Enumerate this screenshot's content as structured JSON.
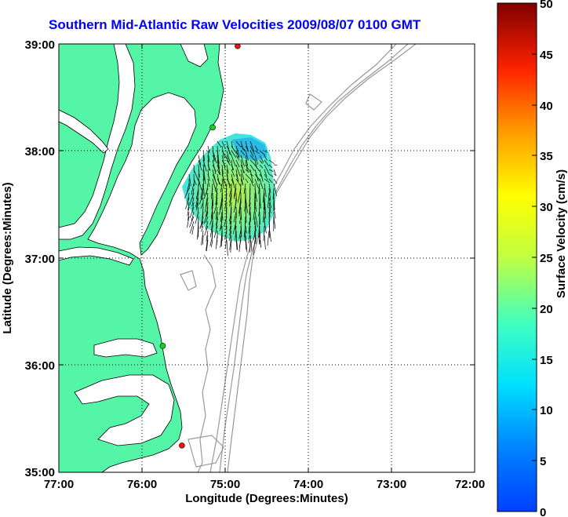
{
  "title": "Southern Mid-Atlantic Raw Velocities 2009/08/07 0100 GMT",
  "x_axis": {
    "label": "Longitude (Degrees:Minutes)",
    "ticks": [
      "77:00",
      "76:00",
      "75:00",
      "74:00",
      "73:00",
      "72:00"
    ],
    "values": [
      -77,
      -76,
      -75,
      -74,
      -73,
      -72
    ],
    "range": [
      -77,
      -72
    ]
  },
  "y_axis": {
    "label": "Latitude (Degrees:Minutes)",
    "ticks": [
      "39:00",
      "38:00",
      "37:00",
      "36:00",
      "35:00"
    ],
    "values": [
      39,
      38,
      37,
      36,
      35
    ],
    "range": [
      35,
      39
    ]
  },
  "colorbar": {
    "label": "Surface Velocity (cm/s)",
    "ticks": [
      "50",
      "45",
      "40",
      "35",
      "30",
      "25",
      "20",
      "15",
      "10",
      "5",
      "0"
    ],
    "range": [
      0,
      50
    ],
    "colormap": "jet"
  },
  "colors": {
    "land": "#55f5a8",
    "water": "#ffffff",
    "bathymetry": "#999999",
    "title": "#0000ff",
    "arrows": "#000000",
    "station_green": "#22cc22",
    "station_red": "#ee1111"
  },
  "stations": [
    {
      "lon": -74.85,
      "lat": 38.98,
      "color": "red"
    },
    {
      "lon": -75.15,
      "lat": 38.22,
      "color": "green"
    },
    {
      "lon": -75.75,
      "lat": 36.18,
      "color": "green"
    },
    {
      "lon": -75.52,
      "lat": 35.25,
      "color": "red"
    }
  ],
  "velocity_field": {
    "center_lon": -74.9,
    "center_lat": 37.6,
    "description_units": "cm/s",
    "min_speed": 5,
    "max_speed": 25
  }
}
